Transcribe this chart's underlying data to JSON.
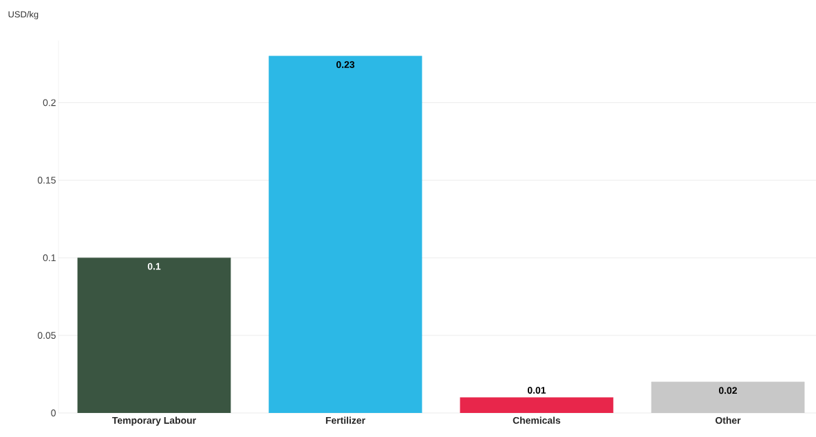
{
  "chart_data": {
    "type": "bar",
    "ylabel": "USD/kg",
    "categories": [
      "Temporary Labour",
      "Fertilizer",
      "Chemicals",
      "Other"
    ],
    "values": [
      0.1,
      0.23,
      0.01,
      0.02
    ],
    "colors": [
      "#3a5541",
      "#2cb8e6",
      "#e8264b",
      "#c8c8c8"
    ],
    "ylim": [
      0,
      0.24
    ],
    "yticks": [
      0,
      0.05,
      0.1,
      0.15,
      0.2
    ],
    "grid": "y",
    "data_labels": true
  }
}
